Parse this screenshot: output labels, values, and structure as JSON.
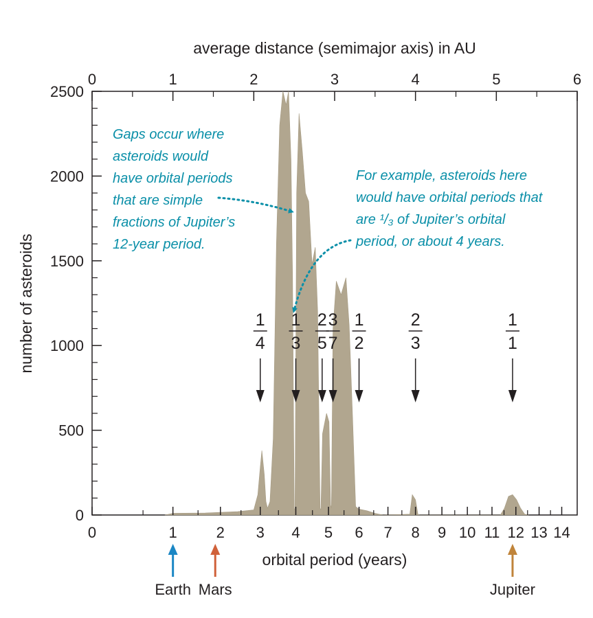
{
  "chart_data": {
    "type": "area",
    "title": "",
    "xlabel": "orbital period (years)",
    "x2label": "average distance (semimajor axis) in AU",
    "ylabel": "number of asteroids",
    "ylim": [
      0,
      2500
    ],
    "yticks": [
      "0",
      "500",
      "1000",
      "1500",
      "2000",
      "2500"
    ],
    "bottom_axis": {
      "unit": "years",
      "ticks": [
        {
          "value": 0,
          "label": "0"
        },
        {
          "value": 1,
          "label": "1"
        },
        {
          "value": 2,
          "label": "2"
        },
        {
          "value": 3,
          "label": "3"
        },
        {
          "value": 4,
          "label": "4"
        },
        {
          "value": 5,
          "label": "5"
        },
        {
          "value": 6,
          "label": "6"
        },
        {
          "value": 7,
          "label": "7"
        },
        {
          "value": 8,
          "label": "8"
        },
        {
          "value": 9,
          "label": "9"
        },
        {
          "value": 10,
          "label": "10"
        },
        {
          "value": 11,
          "label": "11"
        },
        {
          "value": 12,
          "label": "12"
        },
        {
          "value": 13,
          "label": "13"
        },
        {
          "value": 14,
          "label": "14"
        }
      ]
    },
    "top_axis": {
      "unit": "AU",
      "ticks": [
        "0",
        "1",
        "2",
        "3",
        "4",
        "5",
        "6"
      ]
    },
    "grid": false,
    "fill_color": "#b1a68f",
    "distribution": {
      "x_unit": "AU",
      "points": [
        [
          0.9,
          0
        ],
        [
          1.0,
          10
        ],
        [
          1.4,
          12
        ],
        [
          1.8,
          20
        ],
        [
          2.0,
          30
        ],
        [
          2.05,
          120
        ],
        [
          2.08,
          280
        ],
        [
          2.1,
          380
        ],
        [
          2.13,
          240
        ],
        [
          2.15,
          80
        ],
        [
          2.17,
          40
        ],
        [
          2.2,
          80
        ],
        [
          2.24,
          450
        ],
        [
          2.28,
          1600
        ],
        [
          2.32,
          2300
        ],
        [
          2.36,
          2500
        ],
        [
          2.4,
          2420
        ],
        [
          2.43,
          2500
        ],
        [
          2.46,
          2100
        ],
        [
          2.48,
          1400
        ],
        [
          2.5,
          40
        ],
        [
          2.51,
          30
        ],
        [
          2.53,
          1900
        ],
        [
          2.56,
          2370
        ],
        [
          2.6,
          2150
        ],
        [
          2.64,
          1900
        ],
        [
          2.68,
          1850
        ],
        [
          2.72,
          1480
        ],
        [
          2.76,
          1580
        ],
        [
          2.79,
          1200
        ],
        [
          2.82,
          40
        ],
        [
          2.83,
          30
        ],
        [
          2.85,
          480
        ],
        [
          2.9,
          600
        ],
        [
          2.93,
          550
        ],
        [
          2.95,
          60
        ],
        [
          2.96,
          40
        ],
        [
          2.98,
          1100
        ],
        [
          3.02,
          1380
        ],
        [
          3.08,
          1300
        ],
        [
          3.14,
          1400
        ],
        [
          3.18,
          1120
        ],
        [
          3.22,
          600
        ],
        [
          3.26,
          50
        ],
        [
          3.3,
          35
        ],
        [
          3.4,
          25
        ],
        [
          3.5,
          10
        ],
        [
          3.6,
          0
        ],
        [
          3.93,
          5
        ],
        [
          3.96,
          120
        ],
        [
          4.0,
          90
        ],
        [
          4.03,
          5
        ],
        [
          4.05,
          0
        ],
        [
          5.05,
          0
        ],
        [
          5.1,
          40
        ],
        [
          5.15,
          110
        ],
        [
          5.2,
          120
        ],
        [
          5.25,
          90
        ],
        [
          5.3,
          40
        ],
        [
          5.35,
          5
        ],
        [
          5.4,
          0
        ]
      ]
    },
    "annotations": [
      {
        "lines": [
          "Gaps occur where",
          "asteroids would",
          "have orbital periods",
          "that are simple",
          "fractions of Jupiter’s",
          "12-year period."
        ]
      },
      {
        "lines": [
          "For example, asteroids here",
          "would have orbital periods that",
          "are ¹/₃ of Jupiter’s orbital",
          "period, or about 4 years."
        ]
      }
    ],
    "resonances": [
      {
        "num": "1",
        "den": "4",
        "period": 3
      },
      {
        "num": "1",
        "den": "3",
        "period": 4
      },
      {
        "num": "2",
        "den": "5",
        "period": 4.8
      },
      {
        "num": "3",
        "den": "7",
        "period": 5.143
      },
      {
        "num": "1",
        "den": "2",
        "period": 6
      },
      {
        "num": "2",
        "den": "3",
        "period": 8
      },
      {
        "num": "1",
        "den": "1",
        "period": 11.86
      }
    ],
    "planets": [
      {
        "name": "Earth",
        "period": 1,
        "color": "#1a86c4"
      },
      {
        "name": "Mars",
        "period": 1.88,
        "color": "#d0613a"
      },
      {
        "name": "Jupiter",
        "period": 11.86,
        "color": "#c0843a"
      }
    ],
    "arrow_color": "#0a8fa8"
  }
}
